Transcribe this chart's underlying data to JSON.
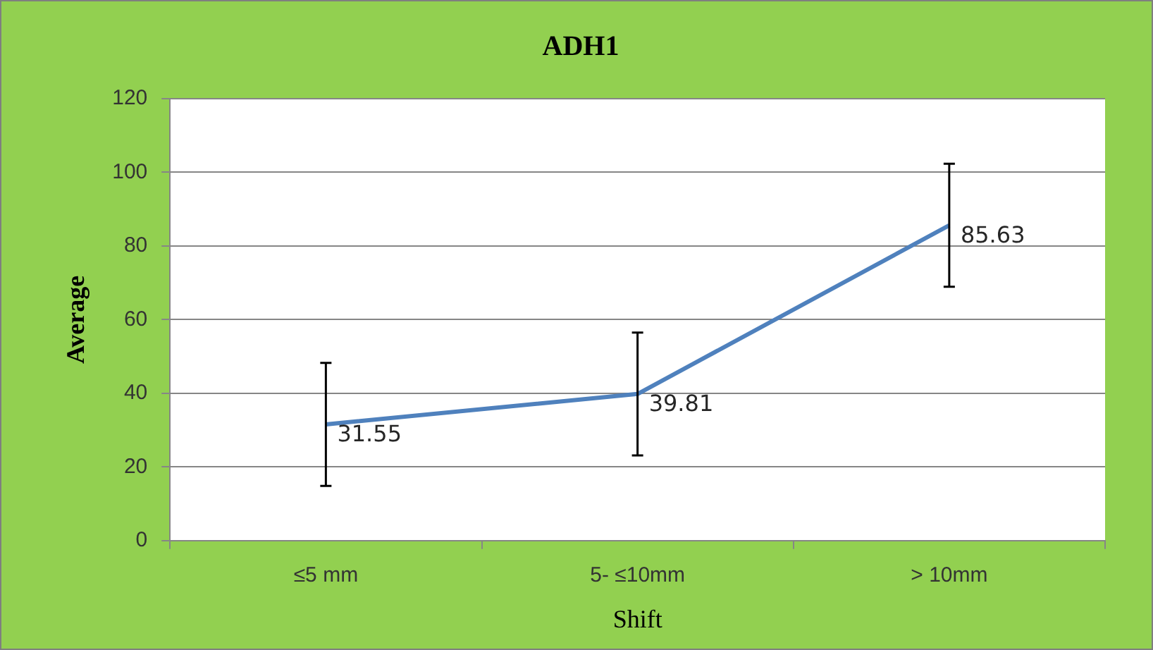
{
  "chart_data": {
    "type": "line",
    "title": "ADH1",
    "xlabel": "Shift",
    "ylabel": "Average",
    "categories": [
      "≤5 mm",
      "5- ≤10mm",
      "> 10mm"
    ],
    "values": [
      31.55,
      39.81,
      85.63
    ],
    "errors": [
      16.7,
      16.7,
      16.7
    ],
    "color": "#4f81bd",
    "ylim": [
      0,
      120
    ],
    "yticks": [
      0,
      20,
      40,
      60,
      80,
      100,
      120
    ],
    "grid": "y",
    "legend": false,
    "marker": "none",
    "line_style": "solid",
    "data_labels": true
  }
}
